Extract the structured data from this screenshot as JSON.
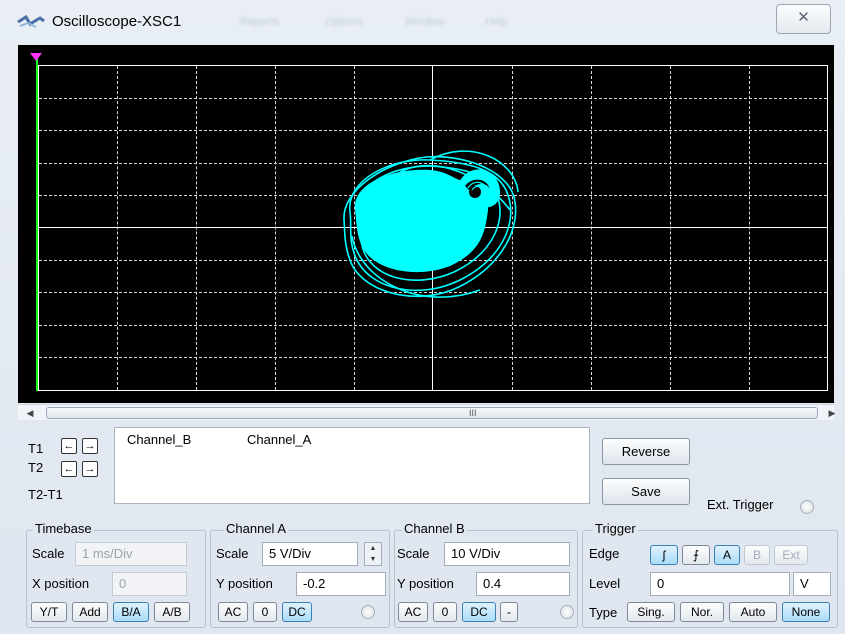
{
  "window": {
    "title": "Oscilloscope-XSC1",
    "ghost_menu": [
      "Reports",
      "Options",
      "Window",
      "Help"
    ],
    "close_symbol": "✕"
  },
  "colors": {
    "screen_background": "#000000",
    "trace": "#00ffff",
    "grid": "#d9d9d9",
    "cursor_line": "#1aff1a",
    "cursor_marker": "#ff33ff"
  },
  "scrollbar": {
    "left_arrow": "◀",
    "right_arrow": "▶",
    "grip": "III"
  },
  "cursors": {
    "t1": "T1",
    "t2": "T2",
    "t2_t1": "T2-T1",
    "left_arrow": "←",
    "right_arrow": "→",
    "columns": [
      "Channel_B",
      "Channel_A"
    ]
  },
  "buttons": {
    "reverse": "Reverse",
    "save": "Save",
    "ext_trigger": "Ext. Trigger"
  },
  "timebase": {
    "title": "Timebase",
    "scale_label": "Scale",
    "scale_value": "1 ms/Div",
    "xpos_label": "X position",
    "xpos_value": "0",
    "modes": [
      "Y/T",
      "Add",
      "B/A",
      "A/B"
    ],
    "active_mode": "B/A"
  },
  "channel_a": {
    "title": "Channel A",
    "scale_label": "Scale",
    "scale_value": "5  V/Div",
    "ypos_label": "Y position",
    "ypos_value": "-0.2",
    "coupling": [
      "AC",
      "0",
      "DC"
    ],
    "active_coupling": "DC"
  },
  "channel_b": {
    "title": "Channel B",
    "scale_label": "Scale",
    "scale_value": "10  V/Div",
    "ypos_label": "Y position",
    "ypos_value": "0.4",
    "coupling": [
      "AC",
      "0",
      "DC",
      "-"
    ],
    "active_coupling": "DC"
  },
  "trigger": {
    "title": "Trigger",
    "edge_label": "Edge",
    "edge_buttons": [
      "ʃ",
      "⨍",
      "A",
      "B",
      "Ext"
    ],
    "level_label": "Level",
    "level_value": "0",
    "level_unit": "V",
    "type_label": "Type",
    "types": [
      "Sing.",
      "Nor.",
      "Auto",
      "None"
    ],
    "active_type": "None"
  }
}
